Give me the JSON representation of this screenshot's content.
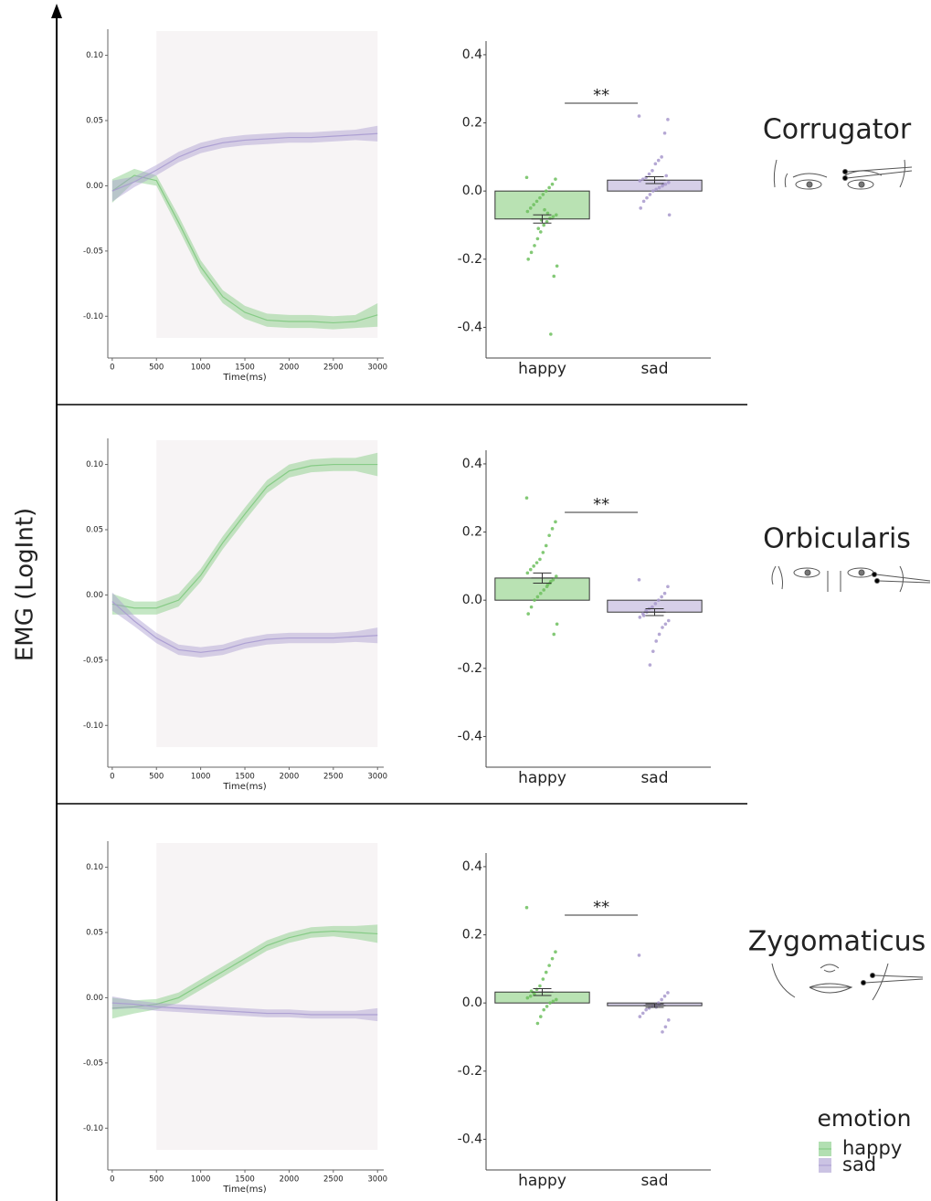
{
  "ylabel": "EMG (LogInt)",
  "legend_title": "emotion",
  "chart_data": [
    {
      "type": "line",
      "xlabel": "Time(ms)",
      "x": [
        0,
        250,
        500,
        750,
        1000,
        1250,
        1500,
        1750,
        2000,
        2250,
        2500,
        2750,
        3000
      ],
      "xlim": [
        -50,
        3070
      ],
      "ylim": [
        -0.132,
        0.12
      ],
      "xticks": [
        0,
        500,
        1000,
        1500,
        2000,
        2500,
        3000
      ],
      "yticks": [
        {
          "value": 0.1,
          "label": "0.10"
        },
        {
          "value": 0.05,
          "label": "0.05"
        },
        {
          "value": 0,
          "label": "0.00"
        },
        {
          "value": -0.05,
          "label": "-0.05"
        },
        {
          "value": -0.1,
          "label": "-0.10"
        }
      ],
      "highlight_x": [
        500,
        3000
      ],
      "series": [
        {
          "name": "happy",
          "color": "#7fc97f",
          "values": [
            -0.004,
            0.008,
            0.004,
            -0.028,
            -0.062,
            -0.085,
            -0.097,
            -0.103,
            -0.104,
            -0.104,
            -0.105,
            -0.104,
            -0.099
          ],
          "ci": [
            0.009,
            0.005,
            0.004,
            0.005,
            0.005,
            0.005,
            0.005,
            0.005,
            0.005,
            0.005,
            0.005,
            0.005,
            0.009
          ]
        },
        {
          "name": "sad",
          "color": "#a99bd0",
          "values": [
            -0.004,
            0.003,
            0.012,
            0.022,
            0.029,
            0.033,
            0.035,
            0.036,
            0.037,
            0.037,
            0.038,
            0.039,
            0.04
          ],
          "ci": [
            0.008,
            0.004,
            0.004,
            0.004,
            0.004,
            0.004,
            0.004,
            0.004,
            0.004,
            0.004,
            0.004,
            0.004,
            0.006
          ]
        }
      ]
    },
    {
      "type": "bar",
      "title": "Corrugator",
      "annotation": "**",
      "categories": [
        "happy",
        "sad"
      ],
      "values": [
        -0.082,
        0.032
      ],
      "errors": [
        0.012,
        0.01
      ],
      "colors": [
        "#b9e2b3",
        "#d6cfe8"
      ],
      "point_colors": [
        "#6dbf5e",
        "#a899cc"
      ],
      "points": [
        [
          0.04,
          0.035,
          0.02,
          0.01,
          0.0,
          -0.01,
          -0.02,
          -0.03,
          -0.04,
          -0.05,
          -0.06,
          -0.07,
          -0.075,
          -0.08,
          -0.09,
          -0.1,
          -0.12,
          -0.14,
          -0.16,
          -0.18,
          -0.2,
          -0.22,
          -0.25,
          -0.42,
          -0.065,
          -0.055,
          -0.085,
          -0.11
        ],
        [
          0.22,
          0.21,
          0.17,
          0.1,
          0.09,
          0.08,
          0.06,
          0.05,
          0.04,
          0.035,
          0.03,
          0.025,
          0.02,
          0.015,
          0.01,
          0.005,
          0.0,
          -0.01,
          -0.02,
          -0.03,
          -0.05,
          -0.07,
          0.045,
          0.02
        ]
      ],
      "ylim": [
        -0.49,
        0.44
      ],
      "yticks": [
        0.4,
        0.2,
        {
          "value": 0,
          "label": "0.0"
        },
        -0.2,
        -0.4
      ]
    },
    {
      "type": "line",
      "xlabel": "Time(ms)",
      "x": [
        0,
        250,
        500,
        750,
        1000,
        1250,
        1500,
        1750,
        2000,
        2250,
        2500,
        2750,
        3000
      ],
      "xlim": [
        -50,
        3070
      ],
      "ylim": [
        -0.132,
        0.12
      ],
      "xticks": [
        0,
        500,
        1000,
        1500,
        2000,
        2500,
        3000
      ],
      "yticks": [
        {
          "value": 0.1,
          "label": "0.10"
        },
        {
          "value": 0.05,
          "label": "0.05"
        },
        {
          "value": 0,
          "label": "0.00"
        },
        {
          "value": -0.05,
          "label": "-0.05"
        },
        {
          "value": -0.1,
          "label": "-0.10"
        }
      ],
      "highlight_x": [
        500,
        3000
      ],
      "series": [
        {
          "name": "happy",
          "color": "#7fc97f",
          "values": [
            -0.007,
            -0.01,
            -0.01,
            -0.004,
            0.015,
            0.04,
            0.062,
            0.083,
            0.095,
            0.099,
            0.1,
            0.1,
            0.1
          ],
          "ci": [
            0.008,
            0.005,
            0.005,
            0.005,
            0.005,
            0.005,
            0.005,
            0.005,
            0.005,
            0.005,
            0.005,
            0.005,
            0.009
          ]
        },
        {
          "name": "sad",
          "color": "#a99bd0",
          "values": [
            -0.005,
            -0.02,
            -0.033,
            -0.042,
            -0.044,
            -0.042,
            -0.037,
            -0.034,
            -0.033,
            -0.033,
            -0.033,
            -0.032,
            -0.031
          ],
          "ci": [
            0.007,
            0.004,
            0.004,
            0.004,
            0.004,
            0.004,
            0.004,
            0.004,
            0.004,
            0.004,
            0.004,
            0.004,
            0.006
          ]
        }
      ]
    },
    {
      "type": "bar",
      "title": "Orbicularis",
      "annotation": "**",
      "categories": [
        "happy",
        "sad"
      ],
      "values": [
        0.065,
        -0.035
      ],
      "errors": [
        0.015,
        0.01
      ],
      "colors": [
        "#b9e2b3",
        "#d6cfe8"
      ],
      "point_colors": [
        "#6dbf5e",
        "#a899cc"
      ],
      "points": [
        [
          0.3,
          0.23,
          0.21,
          0.19,
          0.16,
          0.14,
          0.12,
          0.11,
          0.1,
          0.09,
          0.08,
          0.07,
          0.06,
          0.05,
          0.04,
          0.03,
          0.02,
          0.01,
          0.0,
          -0.02,
          -0.04,
          -0.07,
          -0.1,
          0.055,
          0.045
        ],
        [
          0.06,
          0.04,
          0.02,
          0.01,
          0.0,
          -0.01,
          -0.02,
          -0.025,
          -0.03,
          -0.04,
          -0.05,
          -0.06,
          -0.07,
          -0.08,
          -0.1,
          -0.12,
          -0.15,
          -0.19,
          -0.035,
          -0.045
        ]
      ],
      "ylim": [
        -0.49,
        0.44
      ],
      "yticks": [
        0.4,
        0.2,
        {
          "value": 0,
          "label": "0.0"
        },
        -0.2,
        -0.4
      ]
    },
    {
      "type": "line",
      "xlabel": "Time(ms)",
      "x": [
        0,
        250,
        500,
        750,
        1000,
        1250,
        1500,
        1750,
        2000,
        2250,
        2500,
        2750,
        3000
      ],
      "xlim": [
        -50,
        3070
      ],
      "ylim": [
        -0.132,
        0.12
      ],
      "xticks": [
        0,
        500,
        1000,
        1500,
        2000,
        2500,
        3000
      ],
      "yticks": [
        {
          "value": 0.1,
          "label": "0.10"
        },
        {
          "value": 0.05,
          "label": "0.05"
        },
        {
          "value": 0,
          "label": "0.00"
        },
        {
          "value": -0.05,
          "label": "-0.05"
        },
        {
          "value": -0.1,
          "label": "-0.10"
        }
      ],
      "highlight_x": [
        500,
        3000
      ],
      "series": [
        {
          "name": "happy",
          "color": "#7fc97f",
          "values": [
            -0.008,
            -0.007,
            -0.005,
            0.0,
            0.01,
            0.02,
            0.03,
            0.04,
            0.046,
            0.05,
            0.051,
            0.05,
            0.049
          ],
          "ci": [
            0.008,
            0.005,
            0.004,
            0.004,
            0.004,
            0.004,
            0.004,
            0.004,
            0.004,
            0.004,
            0.004,
            0.005,
            0.007
          ]
        },
        {
          "name": "sad",
          "color": "#a99bd0",
          "values": [
            -0.004,
            -0.005,
            -0.007,
            -0.008,
            -0.009,
            -0.01,
            -0.011,
            -0.012,
            -0.012,
            -0.013,
            -0.013,
            -0.013,
            -0.013
          ],
          "ci": [
            0.005,
            0.003,
            0.003,
            0.003,
            0.003,
            0.003,
            0.003,
            0.003,
            0.003,
            0.003,
            0.003,
            0.003,
            0.005
          ]
        }
      ]
    },
    {
      "type": "bar",
      "title": "Zygomaticus",
      "annotation": "**",
      "categories": [
        "happy",
        "sad"
      ],
      "values": [
        0.032,
        -0.008
      ],
      "errors": [
        0.01,
        0.005
      ],
      "colors": [
        "#b9e2b3",
        "#d6cfe8"
      ],
      "point_colors": [
        "#6dbf5e",
        "#a899cc"
      ],
      "points": [
        [
          0.28,
          0.15,
          0.13,
          0.11,
          0.09,
          0.07,
          0.05,
          0.04,
          0.03,
          0.02,
          0.015,
          0.01,
          0.005,
          0.0,
          -0.01,
          -0.02,
          -0.04,
          -0.06,
          0.025,
          0.035
        ],
        [
          0.14,
          0.03,
          0.02,
          0.01,
          0.0,
          -0.005,
          -0.01,
          -0.015,
          -0.02,
          -0.03,
          -0.04,
          -0.05,
          -0.07,
          -0.085,
          -0.006,
          -0.012
        ]
      ],
      "ylim": [
        -0.49,
        0.44
      ],
      "yticks": [
        0.4,
        0.2,
        {
          "value": 0,
          "label": "0.0"
        },
        -0.2,
        -0.4
      ]
    }
  ]
}
